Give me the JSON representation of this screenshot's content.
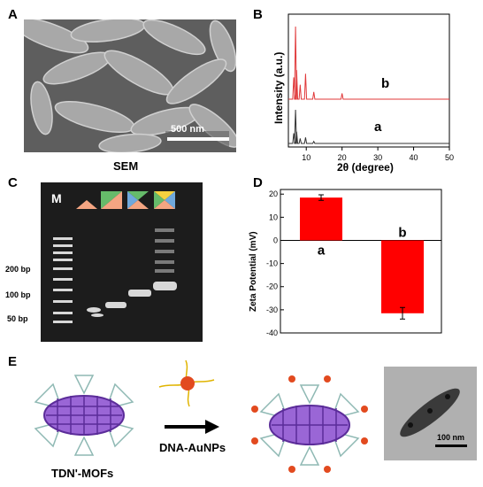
{
  "panels": {
    "A": {
      "letter": "A",
      "scale_bar": "500 nm",
      "caption": "SEM"
    },
    "B": {
      "letter": "B",
      "ylabel": "Intensity (a.u.)",
      "xlabel": "2θ (degree)",
      "xticks": [
        "10",
        "20",
        "30",
        "40",
        "50"
      ],
      "labels": {
        "a": "a",
        "b": "b"
      }
    },
    "C": {
      "letter": "C",
      "lane_marker": "M",
      "ladder_labels": [
        "200 bp",
        "100 bp",
        "50 bp"
      ]
    },
    "D": {
      "letter": "D",
      "ylabel": "Zeta Potential (mV)",
      "yticks": [
        "20",
        "10",
        "0",
        "-10",
        "-20",
        "-30",
        "-40"
      ],
      "bar_labels": [
        "a",
        "b"
      ]
    },
    "E": {
      "letter": "E",
      "label_left": "TDN'-MOFs",
      "label_arrow": "DNA-AuNPs",
      "tem_scale": "100 nm"
    }
  },
  "chart_data": [
    {
      "type": "line",
      "xlabel": "2θ (degree)",
      "ylabel": "Intensity (a.u.)",
      "xlim": [
        5,
        50
      ],
      "series": [
        {
          "name": "a",
          "color": "#333333",
          "x": [
            6.5,
            7.0,
            7.3,
            8.3,
            9.8,
            12.1
          ],
          "y": [
            30,
            100,
            35,
            15,
            18,
            6
          ]
        },
        {
          "name": "b",
          "color": "#e0393a",
          "x": [
            6.5,
            7.0,
            7.3,
            8.3,
            9.8,
            12.1,
            20.0
          ],
          "y": [
            30,
            100,
            40,
            20,
            35,
            10,
            8
          ]
        }
      ]
    },
    {
      "type": "bar",
      "categories": [
        "a",
        "b"
      ],
      "values": [
        18.5,
        -31.5
      ],
      "errors": [
        1.2,
        2.5
      ],
      "ylabel": "Zeta Potential (mV)",
      "ylim": [
        -40,
        22
      ],
      "color": "#ff0000"
    }
  ]
}
